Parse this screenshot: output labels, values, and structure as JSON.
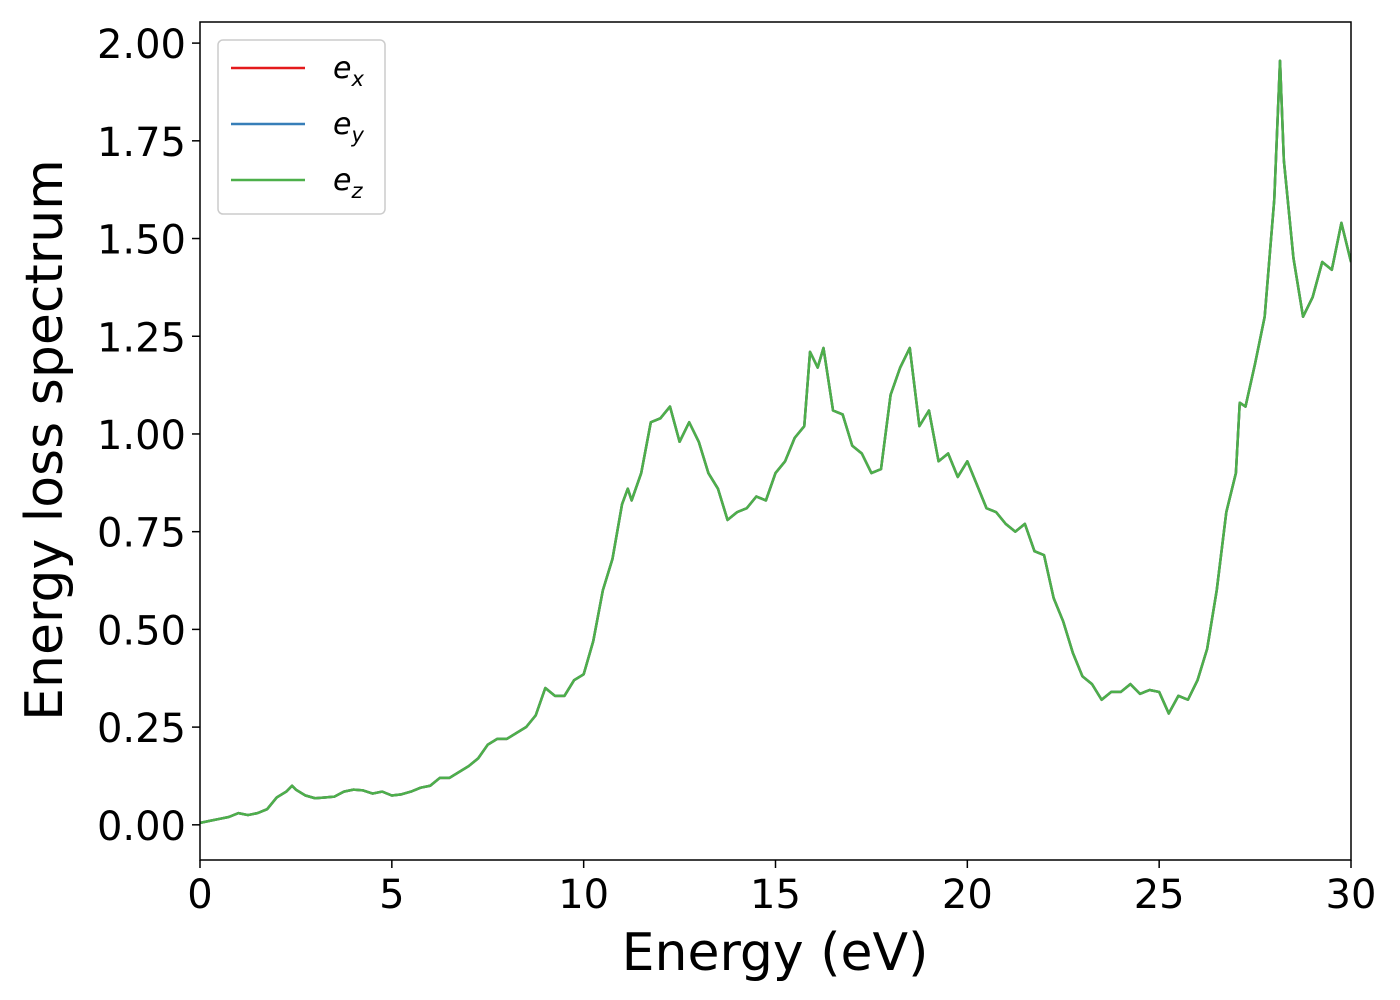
{
  "chart_data": {
    "type": "line",
    "x_label": "Energy (eV)",
    "y_label": "Energy loss spectrum",
    "x": [
      0,
      0.25,
      0.5,
      0.75,
      1,
      1.25,
      1.5,
      1.75,
      2,
      2.25,
      2.4,
      2.5,
      2.75,
      3,
      3.25,
      3.5,
      3.75,
      4,
      4.25,
      4.5,
      4.75,
      5,
      5.25,
      5.5,
      5.75,
      6,
      6.25,
      6.5,
      6.75,
      7,
      7.25,
      7.5,
      7.75,
      8,
      8.25,
      8.5,
      8.75,
      9,
      9.25,
      9.5,
      9.75,
      10,
      10.25,
      10.5,
      10.75,
      11,
      11.15,
      11.25,
      11.5,
      11.75,
      12,
      12.25,
      12.5,
      12.75,
      13,
      13.25,
      13.5,
      13.75,
      14,
      14.25,
      14.5,
      14.75,
      15,
      15.25,
      15.5,
      15.75,
      15.9,
      16.1,
      16.25,
      16.5,
      16.75,
      17,
      17.25,
      17.5,
      17.75,
      18,
      18.25,
      18.5,
      18.75,
      19,
      19.25,
      19.5,
      19.75,
      20,
      20.25,
      20.5,
      20.75,
      21,
      21.25,
      21.5,
      21.75,
      22,
      22.25,
      22.5,
      22.75,
      23,
      23.25,
      23.5,
      23.75,
      24,
      24.25,
      24.5,
      24.75,
      25,
      25.25,
      25.5,
      25.75,
      26,
      26.25,
      26.5,
      26.75,
      27,
      27.1,
      27.25,
      27.5,
      27.75,
      28,
      28.15,
      28.25,
      28.5,
      28.75,
      29,
      29.25,
      29.5,
      29.75,
      30
    ],
    "series": [
      {
        "name": "ex",
        "color": "#e41a1c",
        "values": [
          0.005,
          0.01,
          0.015,
          0.02,
          0.03,
          0.025,
          0.03,
          0.04,
          0.07,
          0.085,
          0.1,
          0.09,
          0.075,
          0.068,
          0.07,
          0.072,
          0.085,
          0.09,
          0.088,
          0.08,
          0.085,
          0.075,
          0.078,
          0.085,
          0.095,
          0.1,
          0.12,
          0.12,
          0.135,
          0.15,
          0.17,
          0.205,
          0.22,
          0.22,
          0.235,
          0.25,
          0.28,
          0.35,
          0.33,
          0.33,
          0.37,
          0.385,
          0.47,
          0.6,
          0.68,
          0.82,
          0.86,
          0.83,
          0.9,
          1.03,
          1.04,
          1.07,
          0.98,
          1.03,
          0.98,
          0.9,
          0.86,
          0.78,
          0.8,
          0.81,
          0.84,
          0.83,
          0.9,
          0.93,
          0.99,
          1.02,
          1.21,
          1.17,
          1.22,
          1.06,
          1.05,
          0.97,
          0.95,
          0.9,
          0.91,
          1.1,
          1.17,
          1.22,
          1.02,
          1.06,
          0.93,
          0.95,
          0.89,
          0.93,
          0.87,
          0.81,
          0.8,
          0.77,
          0.75,
          0.77,
          0.7,
          0.69,
          0.58,
          0.52,
          0.44,
          0.38,
          0.36,
          0.32,
          0.34,
          0.34,
          0.36,
          0.335,
          0.345,
          0.34,
          0.285,
          0.33,
          0.32,
          0.37,
          0.45,
          0.6,
          0.8,
          0.9,
          1.08,
          1.07,
          1.18,
          1.3,
          1.6,
          1.955,
          1.7,
          1.45,
          1.3,
          1.35,
          1.44,
          1.42,
          1.54,
          1.44
        ]
      },
      {
        "name": "ey",
        "color": "#377eb8",
        "values": [
          0.005,
          0.01,
          0.015,
          0.02,
          0.03,
          0.025,
          0.03,
          0.04,
          0.07,
          0.085,
          0.1,
          0.09,
          0.075,
          0.068,
          0.07,
          0.072,
          0.085,
          0.09,
          0.088,
          0.08,
          0.085,
          0.075,
          0.078,
          0.085,
          0.095,
          0.1,
          0.12,
          0.12,
          0.135,
          0.15,
          0.17,
          0.205,
          0.22,
          0.22,
          0.235,
          0.25,
          0.28,
          0.35,
          0.33,
          0.33,
          0.37,
          0.385,
          0.47,
          0.6,
          0.68,
          0.82,
          0.86,
          0.83,
          0.9,
          1.03,
          1.04,
          1.07,
          0.98,
          1.03,
          0.98,
          0.9,
          0.86,
          0.78,
          0.8,
          0.81,
          0.84,
          0.83,
          0.9,
          0.93,
          0.99,
          1.02,
          1.21,
          1.17,
          1.22,
          1.06,
          1.05,
          0.97,
          0.95,
          0.9,
          0.91,
          1.1,
          1.17,
          1.22,
          1.02,
          1.06,
          0.93,
          0.95,
          0.89,
          0.93,
          0.87,
          0.81,
          0.8,
          0.77,
          0.75,
          0.77,
          0.7,
          0.69,
          0.58,
          0.52,
          0.44,
          0.38,
          0.36,
          0.32,
          0.34,
          0.34,
          0.36,
          0.335,
          0.345,
          0.34,
          0.285,
          0.33,
          0.32,
          0.37,
          0.45,
          0.6,
          0.8,
          0.9,
          1.08,
          1.07,
          1.18,
          1.3,
          1.6,
          1.955,
          1.7,
          1.45,
          1.3,
          1.35,
          1.44,
          1.42,
          1.54,
          1.44
        ]
      },
      {
        "name": "ez",
        "color": "#4daf4a",
        "values": [
          0.005,
          0.01,
          0.015,
          0.02,
          0.03,
          0.025,
          0.03,
          0.04,
          0.07,
          0.085,
          0.1,
          0.09,
          0.075,
          0.068,
          0.07,
          0.072,
          0.085,
          0.09,
          0.088,
          0.08,
          0.085,
          0.075,
          0.078,
          0.085,
          0.095,
          0.1,
          0.12,
          0.12,
          0.135,
          0.15,
          0.17,
          0.205,
          0.22,
          0.22,
          0.235,
          0.25,
          0.28,
          0.35,
          0.33,
          0.33,
          0.37,
          0.385,
          0.47,
          0.6,
          0.68,
          0.82,
          0.86,
          0.83,
          0.9,
          1.03,
          1.04,
          1.07,
          0.98,
          1.03,
          0.98,
          0.9,
          0.86,
          0.78,
          0.8,
          0.81,
          0.84,
          0.83,
          0.9,
          0.93,
          0.99,
          1.02,
          1.21,
          1.17,
          1.22,
          1.06,
          1.05,
          0.97,
          0.95,
          0.9,
          0.91,
          1.1,
          1.17,
          1.22,
          1.02,
          1.06,
          0.93,
          0.95,
          0.89,
          0.93,
          0.87,
          0.81,
          0.8,
          0.77,
          0.75,
          0.77,
          0.7,
          0.69,
          0.58,
          0.52,
          0.44,
          0.38,
          0.36,
          0.32,
          0.34,
          0.34,
          0.36,
          0.335,
          0.345,
          0.34,
          0.285,
          0.33,
          0.32,
          0.37,
          0.45,
          0.6,
          0.8,
          0.9,
          1.08,
          1.07,
          1.18,
          1.3,
          1.6,
          1.955,
          1.7,
          1.45,
          1.3,
          1.35,
          1.44,
          1.42,
          1.54,
          1.44
        ]
      }
    ],
    "xlim": [
      0,
      30
    ],
    "xticks": [
      0,
      5,
      10,
      15,
      20,
      25,
      30
    ],
    "ylim": [
      -0.09,
      2.054
    ],
    "yticks": [
      {
        "value": 0,
        "label": "0.00"
      },
      0.25,
      {
        "value": 0.5,
        "label": "0.50"
      },
      0.75,
      {
        "value": 1,
        "label": "1.00"
      },
      1.25,
      {
        "value": 1.5,
        "label": "1.50"
      },
      1.75,
      {
        "value": 2,
        "label": "2.00"
      }
    ],
    "grid": false,
    "legend": "upper left"
  }
}
